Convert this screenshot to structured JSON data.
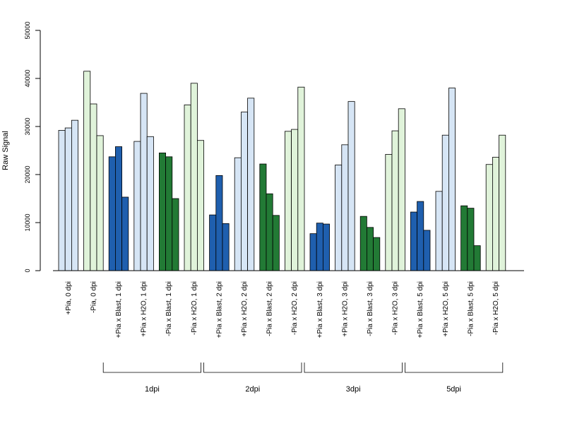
{
  "chart_data": {
    "type": "bar",
    "title": "",
    "xlabel": "",
    "ylabel": "Raw Signal",
    "ylim": [
      0,
      50000
    ],
    "y_ticks": [
      0,
      10000,
      20000,
      30000,
      40000,
      50000
    ],
    "y_tick_labels": [
      "0",
      "10000",
      "20000",
      "30000",
      "40000",
      "50000"
    ],
    "grid": false,
    "colors": {
      "light_blue": "#d6e5f5",
      "dark_blue": "#1f5fae",
      "light_green": "#e0f3da",
      "dark_green": "#227a35"
    },
    "groups": [
      {
        "label": "+Pia, 0 dpi",
        "color": "light_blue",
        "values": [
          29200,
          29700,
          31300
        ]
      },
      {
        "label": "-Pia, 0 dpi",
        "color": "light_green",
        "values": [
          41500,
          34700,
          28100
        ]
      },
      {
        "label": "+Pia x Blast, 1 dpi",
        "color": "dark_blue",
        "values": [
          23700,
          25800,
          15300
        ]
      },
      {
        "label": "+Pia x H2O, 1 dpi",
        "color": "light_blue",
        "values": [
          26900,
          36900,
          27900
        ]
      },
      {
        "label": "-Pia x Blast, 1 dpi",
        "color": "dark_green",
        "values": [
          24500,
          23700,
          15000
        ]
      },
      {
        "label": "-Pia x H2O, 1 dpi",
        "color": "light_green",
        "values": [
          34500,
          39000,
          27100
        ]
      },
      {
        "label": "+Pia x Blast, 2 dpi",
        "color": "dark_blue",
        "values": [
          11600,
          19800,
          9800
        ]
      },
      {
        "label": "+Pia x H2O, 2 dpi",
        "color": "light_blue",
        "values": [
          23500,
          33000,
          35900
        ]
      },
      {
        "label": "-Pia x Blast, 2 dpi",
        "color": "dark_green",
        "values": [
          22200,
          16000,
          11500
        ]
      },
      {
        "label": "-Pia x H2O, 2 dpi",
        "color": "light_green",
        "values": [
          29000,
          29400,
          38200
        ]
      },
      {
        "label": "+Pia x Blast, 3 dpi",
        "color": "dark_blue",
        "values": [
          7700,
          9900,
          9700
        ]
      },
      {
        "label": "+Pia x H2O, 3 dpi",
        "color": "light_blue",
        "values": [
          22000,
          26200,
          35200
        ]
      },
      {
        "label": "-Pia x Blast, 3 dpi",
        "color": "dark_green",
        "values": [
          11300,
          9000,
          6900
        ]
      },
      {
        "label": "-Pia x H2O, 3 dpi",
        "color": "light_green",
        "values": [
          24200,
          29100,
          33700
        ]
      },
      {
        "label": "+Pia x Blast, 5 dpi",
        "color": "dark_blue",
        "values": [
          12200,
          14400,
          8400
        ]
      },
      {
        "label": "+Pia x H2O, 5 dpi",
        "color": "light_blue",
        "values": [
          16500,
          28200,
          38000
        ]
      },
      {
        "label": "-Pia x Blast, 5 dpi",
        "color": "dark_green",
        "values": [
          13500,
          13000,
          5200
        ]
      },
      {
        "label": "-Pia x H2O, 5 dpi",
        "color": "light_green",
        "values": [
          22100,
          23600,
          28200
        ]
      }
    ],
    "brackets": [
      {
        "label": "1dpi",
        "from_group": 2,
        "to_group": 5
      },
      {
        "label": "2dpi",
        "from_group": 6,
        "to_group": 9
      },
      {
        "label": "3dpi",
        "from_group": 10,
        "to_group": 13
      },
      {
        "label": "5dpi",
        "from_group": 14,
        "to_group": 17
      }
    ]
  }
}
